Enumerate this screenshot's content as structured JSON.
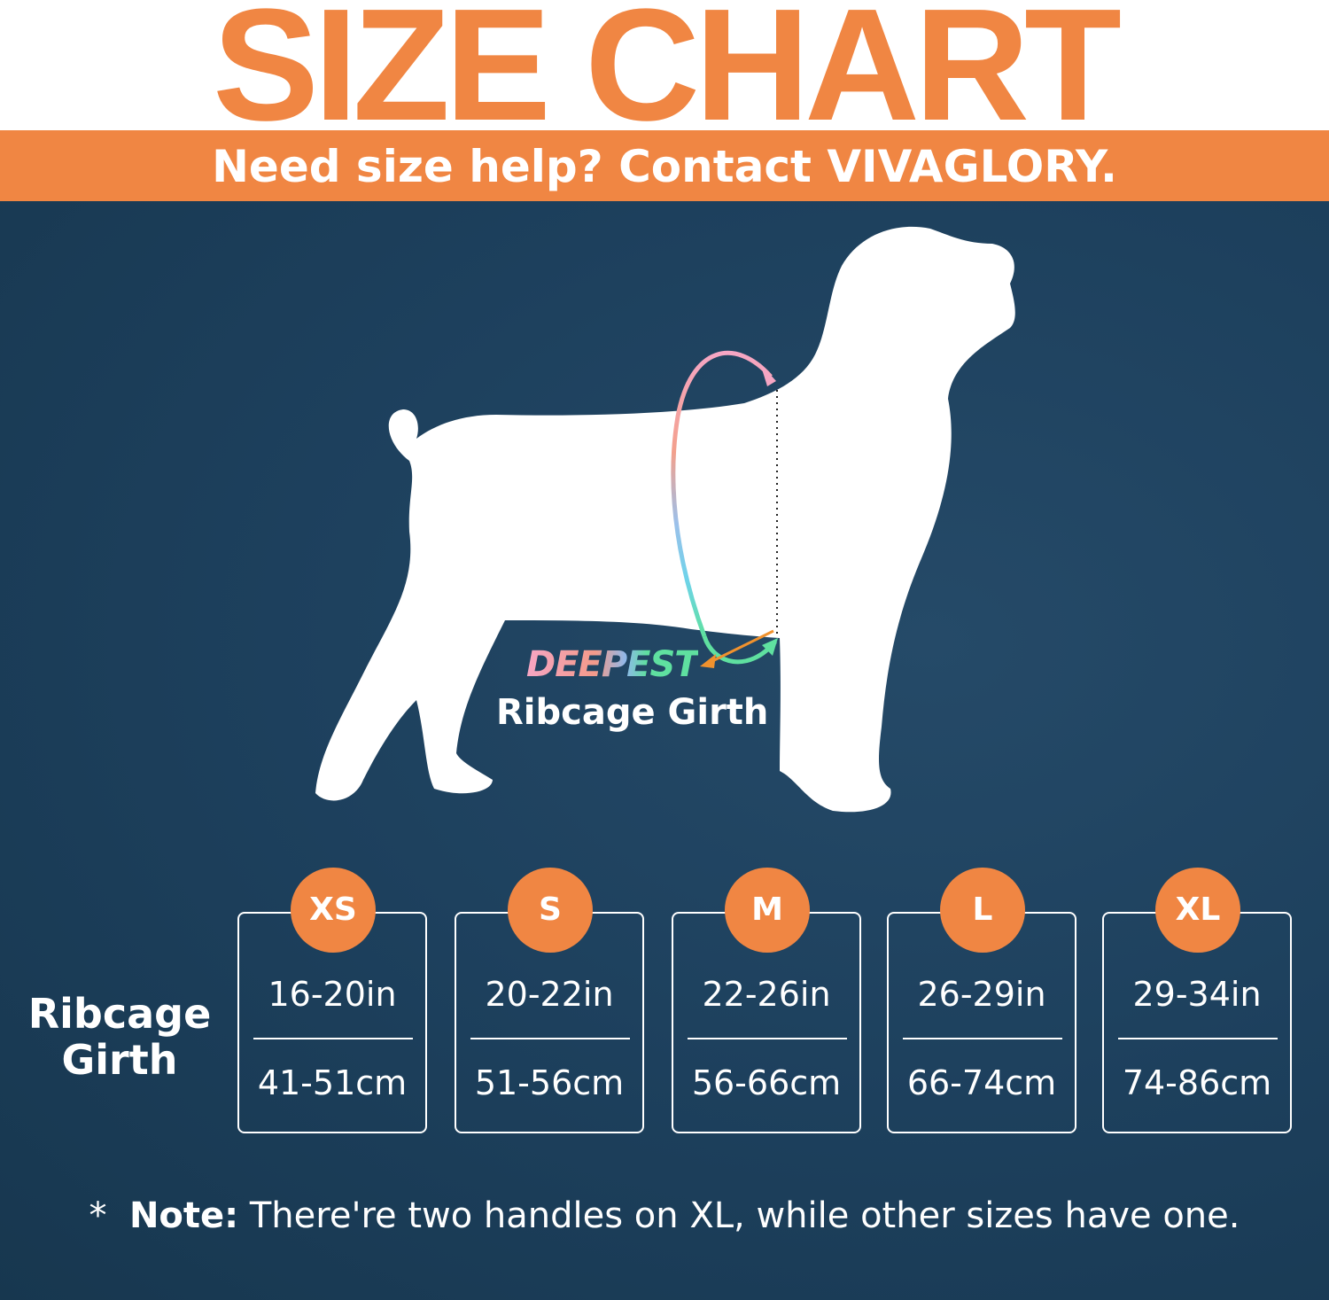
{
  "header": {
    "title": "SIZE CHART",
    "subtitle": "Need size help? Contact VIVAGLORY."
  },
  "diagram": {
    "highlight": "DEEPEST",
    "label": "Ribcage Girth"
  },
  "table": {
    "row_label": "Ribcage Girth",
    "sizes": [
      {
        "size": "XS",
        "inches": "16-20in",
        "cm": "41-51cm"
      },
      {
        "size": "S",
        "inches": "20-22in",
        "cm": "51-56cm"
      },
      {
        "size": "M",
        "inches": "22-26in",
        "cm": "56-66cm"
      },
      {
        "size": "L",
        "inches": "26-29in",
        "cm": "66-74cm"
      },
      {
        "size": "XL",
        "inches": "29-34in",
        "cm": "74-86cm"
      }
    ]
  },
  "note": {
    "marker": "*",
    "label": "Note:",
    "text": "There're two handles on XL, while other sizes have one."
  },
  "colors": {
    "accent": "#f08643",
    "background": "#1d405d",
    "text": "#ffffff"
  }
}
